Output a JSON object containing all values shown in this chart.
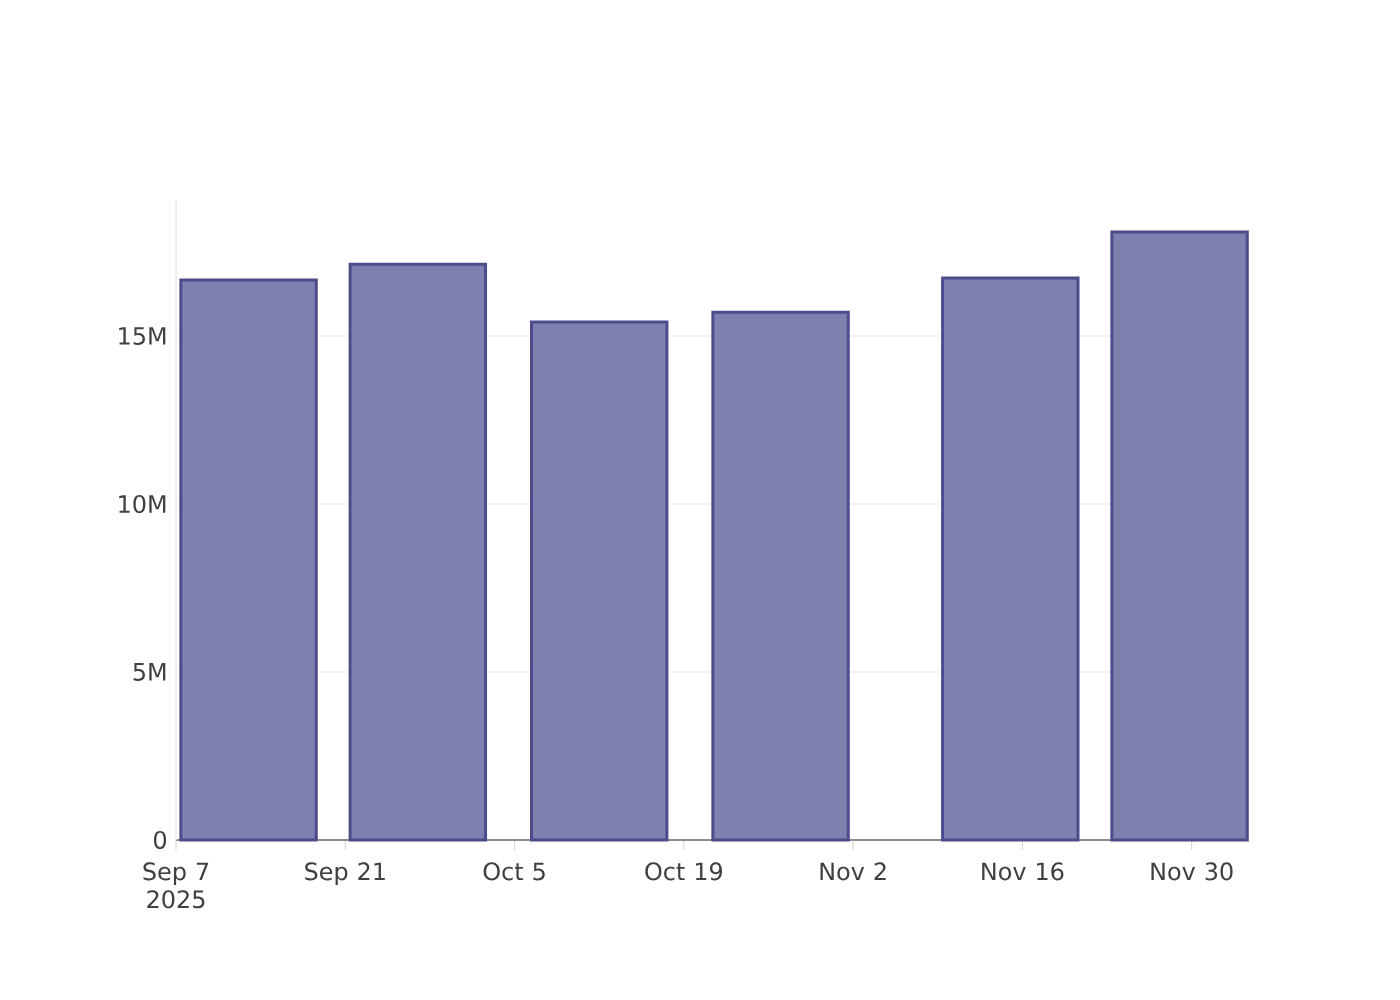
{
  "chart_data": {
    "type": "bar",
    "x": [
      "2025-09-13",
      "2025-09-27",
      "2025-10-12",
      "2025-10-27",
      "2025-11-15",
      "2025-11-29"
    ],
    "values": [
      16670000,
      17140000,
      15420000,
      15710000,
      16730000,
      18100000
    ],
    "color": "#7f7fb0",
    "xlim": [
      "2025-09-07",
      "2025-12-04"
    ],
    "xticks": [
      {
        "value": "2025-09-07",
        "label": "Sep 7 2025"
      },
      {
        "value": "2025-09-21",
        "label": "Sep 21"
      },
      {
        "value": "2025-10-05",
        "label": "Oct 5"
      },
      {
        "value": "2025-10-19",
        "label": "Oct 19"
      },
      {
        "value": "2025-11-02",
        "label": "Nov 2"
      },
      {
        "value": "2025-11-16",
        "label": "Nov 16"
      },
      {
        "value": "2025-11-30",
        "label": "Nov 30"
      }
    ],
    "yticks": [
      {
        "value": 0,
        "label": "0"
      },
      {
        "value": 5000000,
        "label": "5M"
      },
      {
        "value": 10000000,
        "label": "10M"
      },
      {
        "value": 15000000,
        "label": "15M"
      }
    ],
    "ylim": [
      0,
      19050000
    ],
    "grid": "y"
  }
}
